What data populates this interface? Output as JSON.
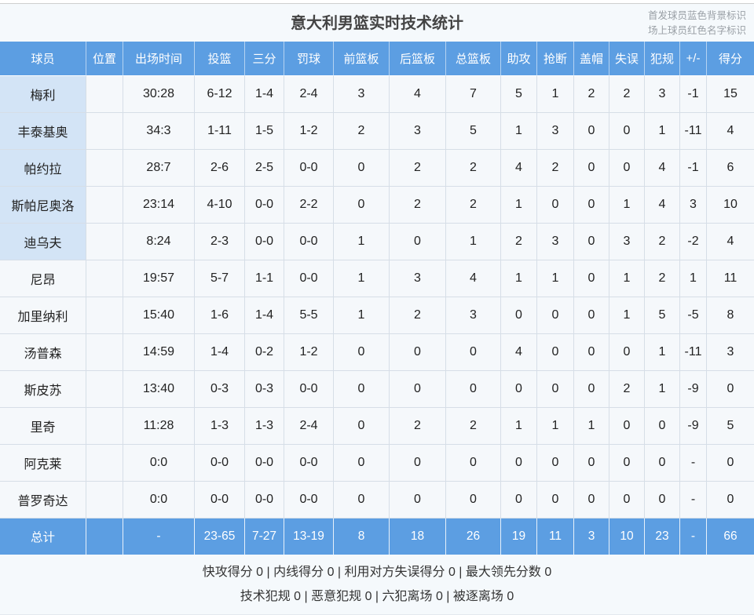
{
  "page": {
    "title": "意大利男篮实时技术统计",
    "legend_starter": "首发球员蓝色背景标识",
    "legend_oncourt": "场上球员红色名字标识"
  },
  "colors": {
    "header_blue": "#5C9EE2",
    "starter_bg": "#D3E4F6",
    "cell_bg": "#F5F8FB",
    "grid_line": "#D6DEE7",
    "band_bg": "#F5F9FC"
  },
  "table": {
    "columns": [
      "球员",
      "位置",
      "出场时间",
      "投篮",
      "三分",
      "罚球",
      "前篮板",
      "后篮板",
      "总篮板",
      "助攻",
      "抢断",
      "盖帽",
      "失误",
      "犯规",
      "+/-",
      "得分"
    ],
    "rows": [
      {
        "name": "梅利",
        "starter": true,
        "position": "",
        "cells": [
          "30:28",
          "6-12",
          "1-4",
          "2-4",
          "3",
          "4",
          "7",
          "5",
          "1",
          "2",
          "2",
          "3",
          "-1",
          "15"
        ]
      },
      {
        "name": "丰泰基奥",
        "starter": true,
        "position": "",
        "cells": [
          "34:3",
          "1-11",
          "1-5",
          "1-2",
          "2",
          "3",
          "5",
          "1",
          "3",
          "0",
          "0",
          "1",
          "-11",
          "4"
        ]
      },
      {
        "name": "帕约拉",
        "starter": true,
        "position": "",
        "cells": [
          "28:7",
          "2-6",
          "2-5",
          "0-0",
          "0",
          "2",
          "2",
          "4",
          "2",
          "0",
          "0",
          "4",
          "-1",
          "6"
        ]
      },
      {
        "name": "斯帕尼奥洛",
        "starter": true,
        "position": "",
        "cells": [
          "23:14",
          "4-10",
          "0-0",
          "2-2",
          "0",
          "2",
          "2",
          "1",
          "0",
          "0",
          "1",
          "4",
          "3",
          "10"
        ]
      },
      {
        "name": "迪乌夫",
        "starter": true,
        "position": "",
        "cells": [
          "8:24",
          "2-3",
          "0-0",
          "0-0",
          "1",
          "0",
          "1",
          "2",
          "3",
          "0",
          "3",
          "2",
          "-2",
          "4"
        ]
      },
      {
        "name": "尼昂",
        "starter": false,
        "position": "",
        "cells": [
          "19:57",
          "5-7",
          "1-1",
          "0-0",
          "1",
          "3",
          "4",
          "1",
          "1",
          "0",
          "1",
          "2",
          "1",
          "11"
        ]
      },
      {
        "name": "加里纳利",
        "starter": false,
        "position": "",
        "cells": [
          "15:40",
          "1-6",
          "1-4",
          "5-5",
          "1",
          "2",
          "3",
          "0",
          "0",
          "0",
          "1",
          "5",
          "-5",
          "8"
        ]
      },
      {
        "name": "汤普森",
        "starter": false,
        "position": "",
        "cells": [
          "14:59",
          "1-4",
          "0-2",
          "1-2",
          "0",
          "0",
          "0",
          "4",
          "0",
          "0",
          "0",
          "1",
          "-11",
          "3"
        ]
      },
      {
        "name": "斯皮苏",
        "starter": false,
        "position": "",
        "cells": [
          "13:40",
          "0-3",
          "0-3",
          "0-0",
          "0",
          "0",
          "0",
          "0",
          "0",
          "0",
          "2",
          "1",
          "-9",
          "0"
        ]
      },
      {
        "name": "里奇",
        "starter": false,
        "position": "",
        "cells": [
          "11:28",
          "1-3",
          "1-3",
          "2-4",
          "0",
          "2",
          "2",
          "1",
          "1",
          "1",
          "0",
          "0",
          "-9",
          "5"
        ]
      },
      {
        "name": "阿克莱",
        "starter": false,
        "position": "",
        "cells": [
          "0:0",
          "0-0",
          "0-0",
          "0-0",
          "0",
          "0",
          "0",
          "0",
          "0",
          "0",
          "0",
          "0",
          "-",
          "0"
        ]
      },
      {
        "name": "普罗奇达",
        "starter": false,
        "position": "",
        "cells": [
          "0:0",
          "0-0",
          "0-0",
          "0-0",
          "0",
          "0",
          "0",
          "0",
          "0",
          "0",
          "0",
          "0",
          "-",
          "0"
        ]
      }
    ],
    "totals": {
      "name": "总计",
      "position": "",
      "cells": [
        "-",
        "23-65",
        "7-27",
        "13-19",
        "8",
        "18",
        "26",
        "19",
        "11",
        "3",
        "10",
        "23",
        "-",
        "66"
      ]
    }
  },
  "footer": {
    "line1": "快攻得分 0 | 内线得分 0 | 利用对方失误得分 0 | 最大领先分数 0",
    "line2": "技术犯规 0 | 恶意犯规 0 | 六犯离场 0 | 被逐离场 0"
  }
}
